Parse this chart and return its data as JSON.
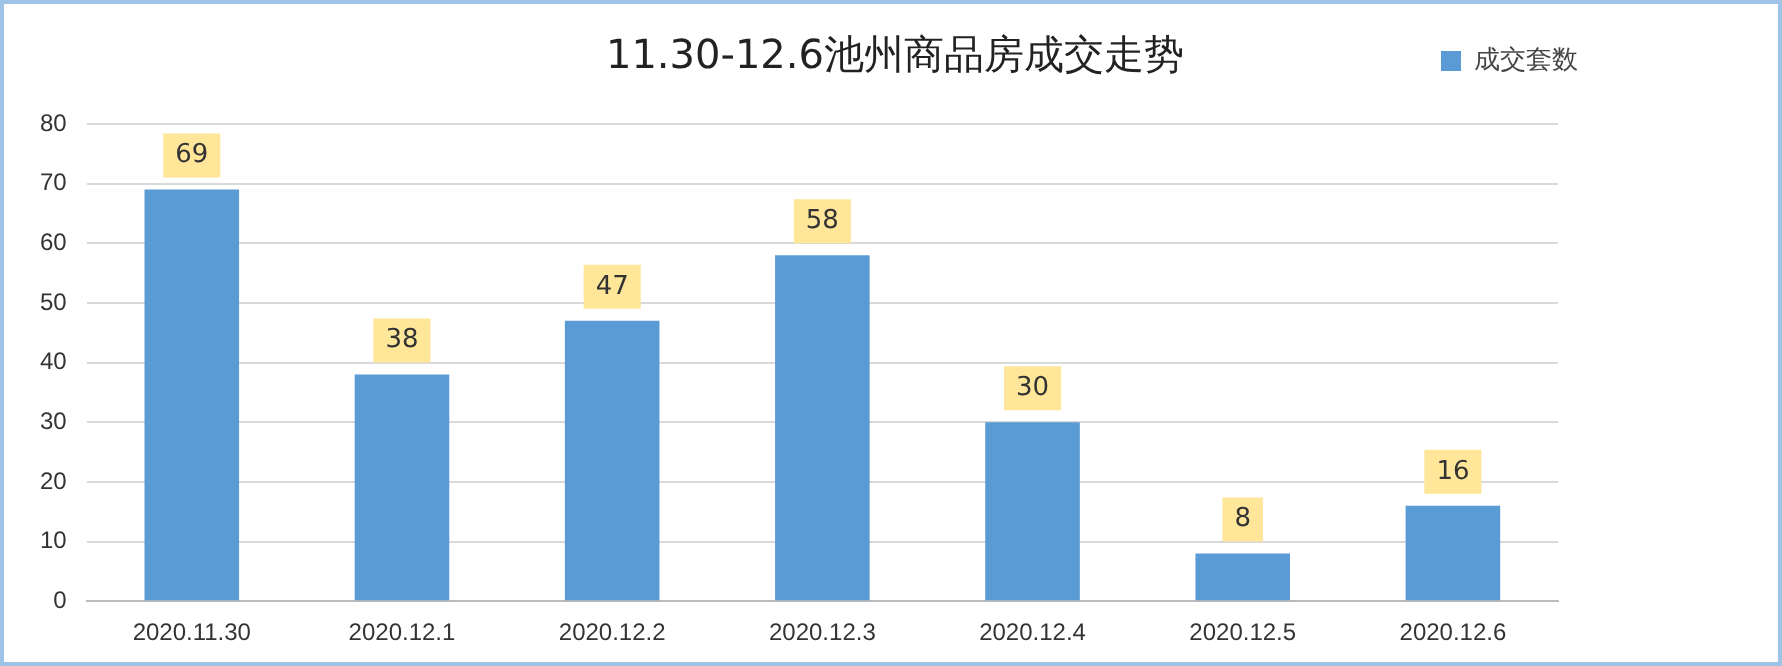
{
  "chart_data": {
    "type": "bar",
    "title": "11.30-12.6池州商品房成交走势",
    "categories": [
      "2020.11.30",
      "2020.12.1",
      "2020.12.2",
      "2020.12.3",
      "2020.12.4",
      "2020.12.5",
      "2020.12.6"
    ],
    "series": [
      {
        "name": "成交套数",
        "color": "#5b9bd5",
        "values": [
          69,
          38,
          47,
          58,
          30,
          8,
          16
        ]
      }
    ],
    "ylim": [
      0,
      80
    ],
    "yticks": [
      0,
      10,
      20,
      30,
      40,
      50,
      60,
      70,
      80
    ],
    "grid": "y",
    "legend": "top right",
    "data_labels": true
  }
}
